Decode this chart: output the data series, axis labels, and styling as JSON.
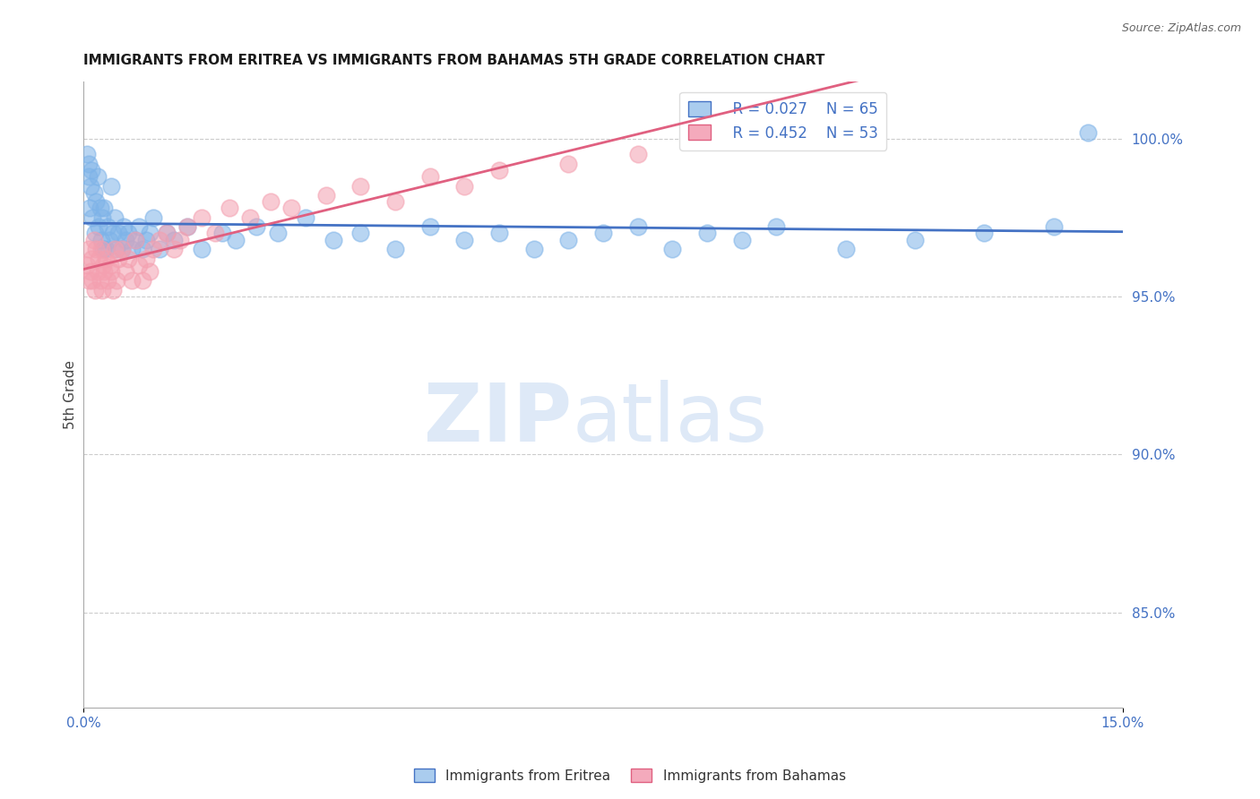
{
  "title": "IMMIGRANTS FROM ERITREA VS IMMIGRANTS FROM BAHAMAS 5TH GRADE CORRELATION CHART",
  "source": "Source: ZipAtlas.com",
  "ylabel": "5th Grade",
  "xmin": 0.0,
  "xmax": 15.0,
  "ymin": 82.0,
  "ymax": 101.8,
  "yticks": [
    85.0,
    90.0,
    95.0,
    100.0
  ],
  "blue_series": {
    "name": "Immigrants from Eritrea",
    "color": "#7EB3E8",
    "line_color": "#4472C4",
    "R": 0.027,
    "N": 65,
    "x": [
      0.05,
      0.07,
      0.08,
      0.09,
      0.1,
      0.12,
      0.13,
      0.15,
      0.17,
      0.18,
      0.2,
      0.22,
      0.24,
      0.25,
      0.27,
      0.28,
      0.3,
      0.32,
      0.35,
      0.37,
      0.4,
      0.42,
      0.45,
      0.47,
      0.5,
      0.55,
      0.58,
      0.6,
      0.65,
      0.7,
      0.75,
      0.8,
      0.85,
      0.9,
      0.95,
      1.0,
      1.1,
      1.2,
      1.3,
      1.5,
      1.7,
      2.0,
      2.2,
      2.5,
      2.8,
      3.2,
      3.6,
      4.0,
      4.5,
      5.0,
      5.5,
      6.0,
      6.5,
      7.0,
      7.5,
      8.0,
      8.5,
      9.0,
      9.5,
      10.0,
      11.0,
      12.0,
      13.0,
      14.0,
      14.5
    ],
    "y": [
      99.5,
      98.8,
      99.2,
      97.8,
      98.5,
      99.0,
      97.5,
      98.3,
      97.0,
      98.0,
      98.8,
      97.2,
      97.8,
      96.8,
      97.5,
      96.5,
      97.8,
      96.5,
      97.2,
      96.8,
      98.5,
      97.0,
      97.5,
      96.5,
      97.0,
      96.5,
      97.2,
      96.8,
      97.0,
      96.5,
      96.8,
      97.2,
      96.5,
      96.8,
      97.0,
      97.5,
      96.5,
      97.0,
      96.8,
      97.2,
      96.5,
      97.0,
      96.8,
      97.2,
      97.0,
      97.5,
      96.8,
      97.0,
      96.5,
      97.2,
      96.8,
      97.0,
      96.5,
      96.8,
      97.0,
      97.2,
      96.5,
      97.0,
      96.8,
      97.2,
      96.5,
      96.8,
      97.0,
      97.2,
      100.2
    ]
  },
  "pink_series": {
    "name": "Immigrants from Bahamas",
    "color": "#F4A0B0",
    "line_color": "#E06080",
    "R": 0.452,
    "N": 53,
    "x": [
      0.05,
      0.07,
      0.08,
      0.1,
      0.12,
      0.13,
      0.15,
      0.17,
      0.18,
      0.2,
      0.22,
      0.24,
      0.25,
      0.27,
      0.28,
      0.3,
      0.32,
      0.35,
      0.38,
      0.4,
      0.42,
      0.45,
      0.48,
      0.5,
      0.55,
      0.6,
      0.65,
      0.7,
      0.75,
      0.8,
      0.85,
      0.9,
      0.95,
      1.0,
      1.1,
      1.2,
      1.3,
      1.4,
      1.5,
      1.7,
      1.9,
      2.1,
      2.4,
      2.7,
      3.0,
      3.5,
      4.0,
      4.5,
      5.0,
      5.5,
      6.0,
      7.0,
      8.0
    ],
    "y": [
      96.0,
      95.5,
      96.5,
      95.8,
      96.2,
      95.5,
      96.8,
      95.2,
      96.5,
      95.8,
      96.2,
      95.5,
      96.5,
      95.2,
      96.0,
      95.8,
      96.2,
      95.5,
      96.0,
      95.8,
      95.2,
      96.5,
      95.5,
      96.2,
      96.5,
      95.8,
      96.2,
      95.5,
      96.8,
      96.0,
      95.5,
      96.2,
      95.8,
      96.5,
      96.8,
      97.0,
      96.5,
      96.8,
      97.2,
      97.5,
      97.0,
      97.8,
      97.5,
      98.0,
      97.8,
      98.2,
      98.5,
      98.0,
      98.8,
      98.5,
      99.0,
      99.2,
      99.5
    ]
  },
  "legend_R_blue": "R = 0.027",
  "legend_N_blue": "N = 65",
  "legend_R_pink": "R = 0.452",
  "legend_N_pink": "N = 53",
  "tick_label_color": "#4472C4",
  "gridline_color": "#CCCCCC",
  "title_fontsize": 11
}
